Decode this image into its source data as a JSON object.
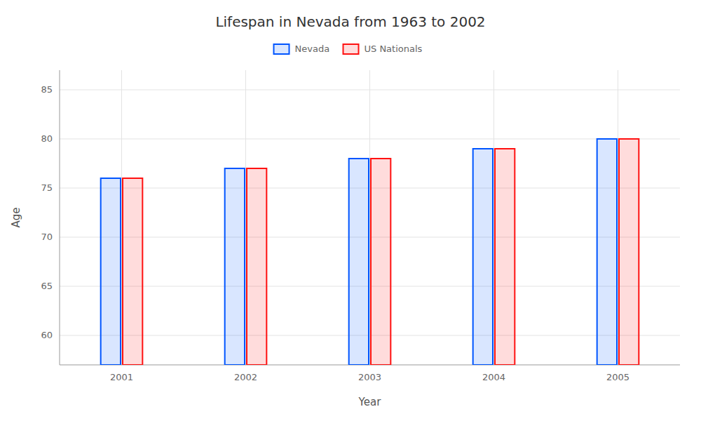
{
  "chart_data": {
    "type": "bar",
    "title": "Lifespan in Nevada from 1963 to 2002",
    "x_label": "Year",
    "y_label": "Age",
    "categories": [
      "2001",
      "2002",
      "2003",
      "2004",
      "2005"
    ],
    "series": [
      {
        "name": "Nevada",
        "color": "#0055ff",
        "values": [
          76,
          77,
          78,
          79,
          80
        ]
      },
      {
        "name": "US Nationals",
        "color": "#ff1111",
        "values": [
          76,
          77,
          78,
          79,
          80
        ]
      }
    ],
    "ylim": [
      57,
      87
    ],
    "yticks": [
      60,
      65,
      70,
      75,
      80,
      85
    ],
    "grid": true,
    "legend": "top"
  }
}
